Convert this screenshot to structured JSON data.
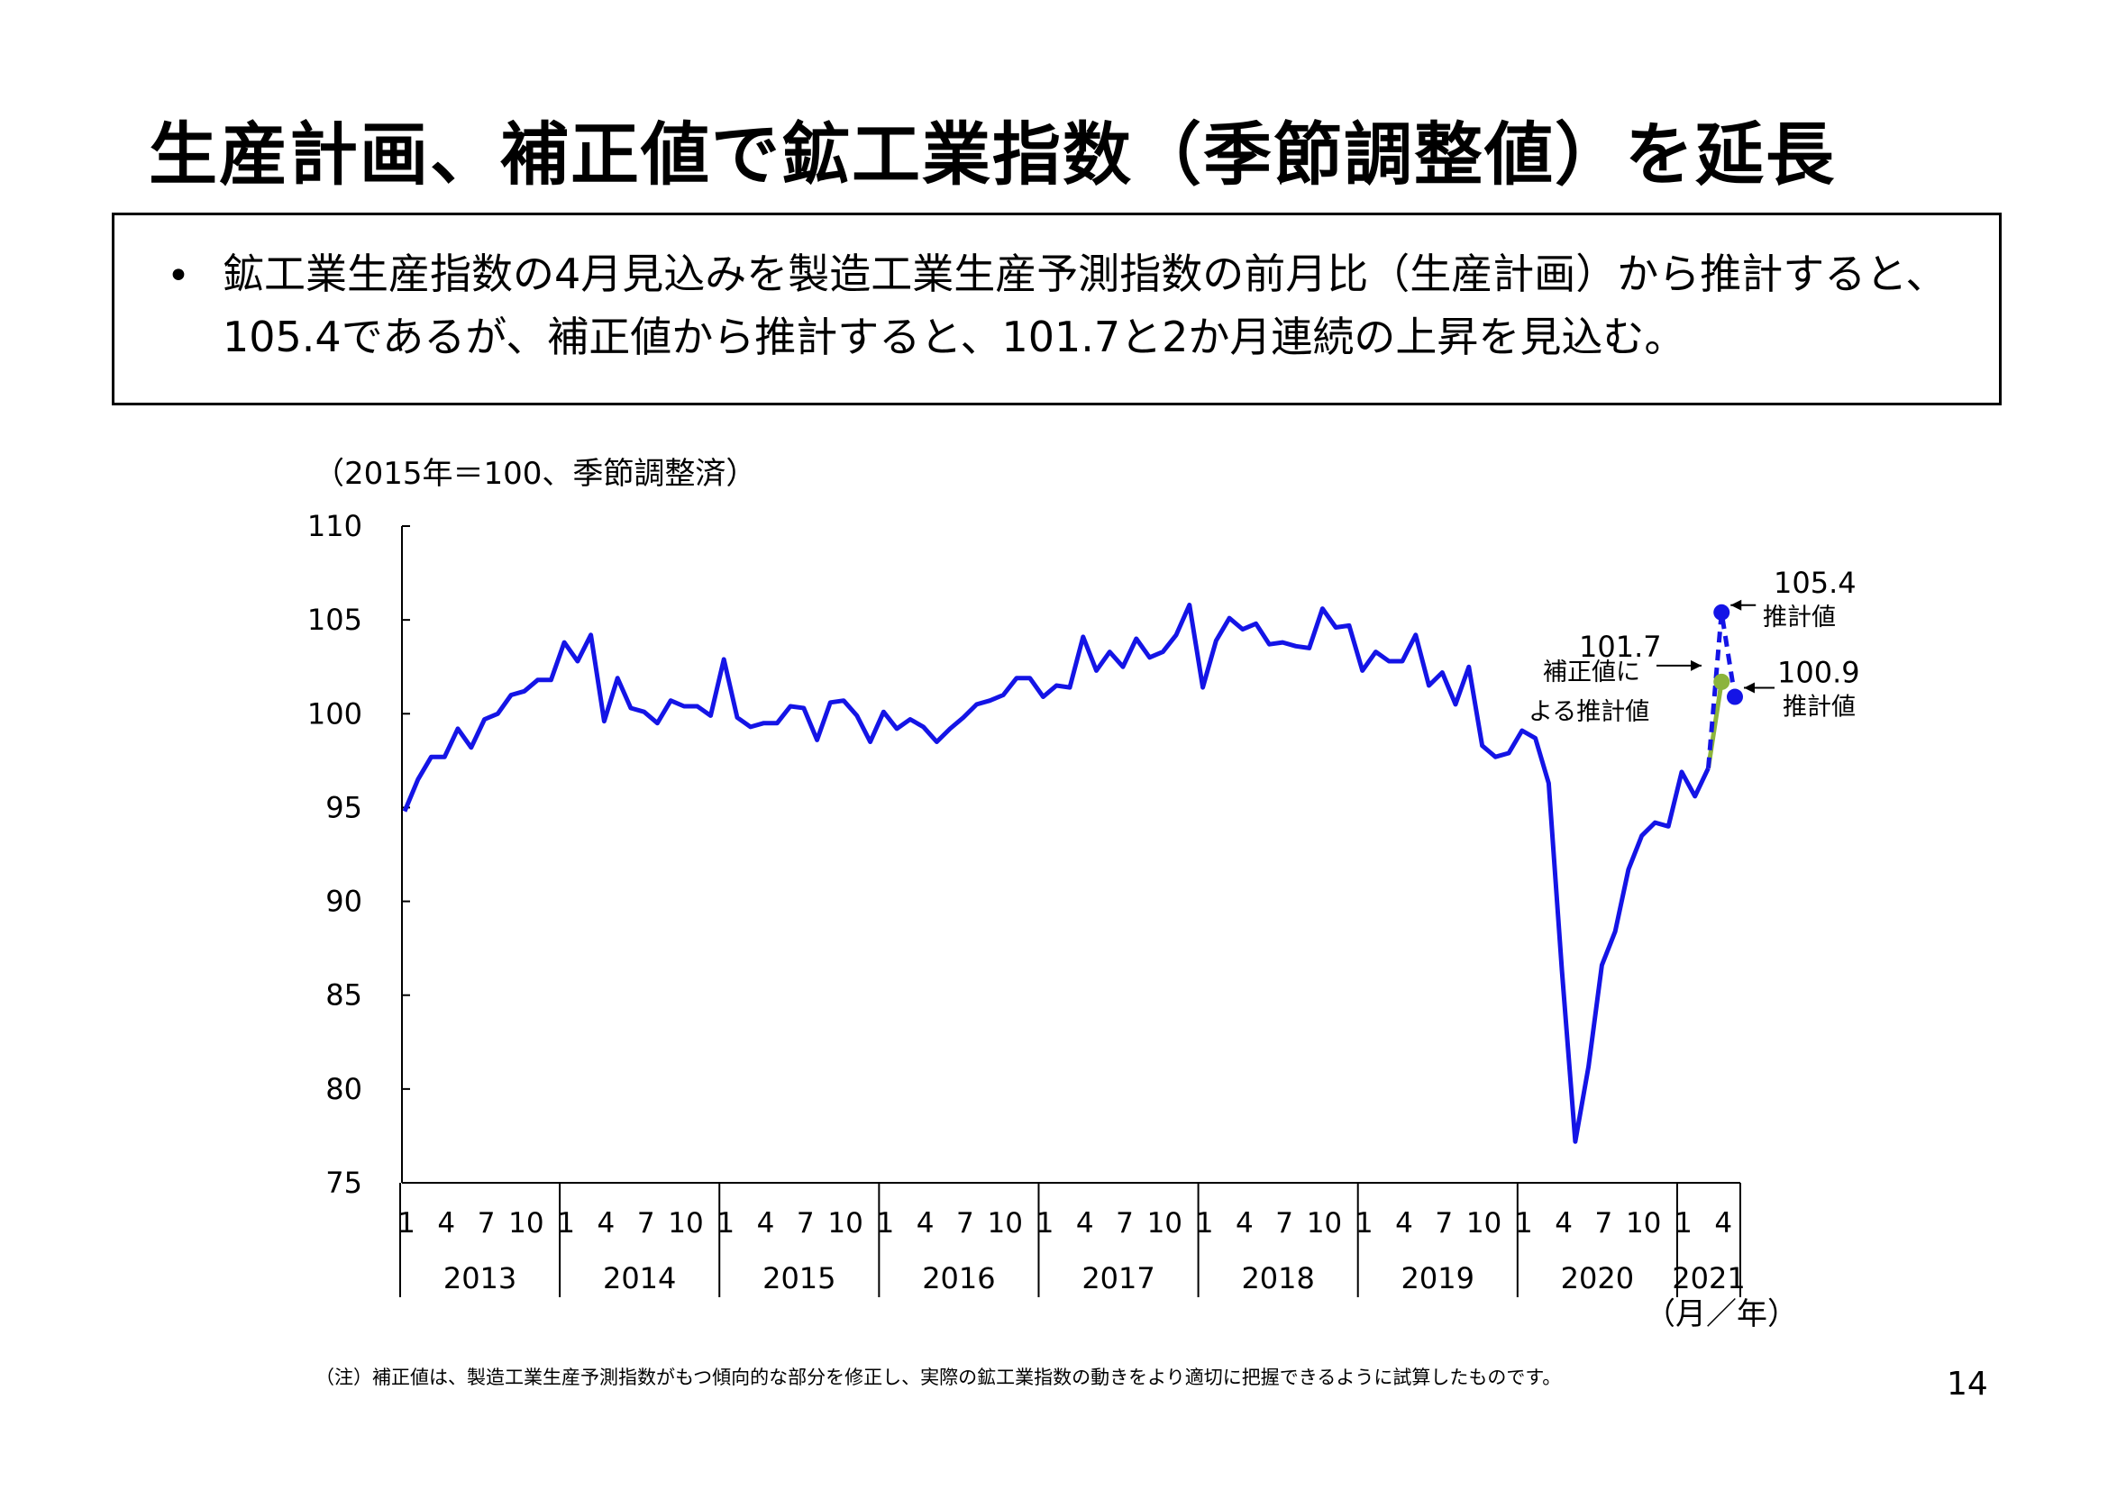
{
  "header": {
    "title": "生産計画、補正値で鉱工業指数（季節調整値）を延長"
  },
  "summary": {
    "bullet": "•",
    "text": "鉱工業生産指数の4月見込みを製造工業生産予測指数の前月比（生産計画）から推計すると、105.4であるが、補正値から推計すると、101.7と2か月連続の上昇を見込む。"
  },
  "chart_data": {
    "type": "line",
    "unit_label": "（2015年＝100、季節調整済）",
    "xlabel": "（月／年）",
    "ylim": [
      75,
      110
    ],
    "y_ticks": [
      "75",
      "80",
      "85",
      "90",
      "95",
      "100",
      "105",
      "110"
    ],
    "month_ticks": [
      "1",
      "4",
      "7",
      "10"
    ],
    "years": [
      "2013",
      "2014",
      "2015",
      "2016",
      "2017",
      "2018",
      "2019",
      "2020",
      "2021"
    ],
    "last_year_month_ticks": [
      "1",
      "4"
    ],
    "grid": false,
    "legend": "none",
    "series": [
      {
        "name": "",
        "color": "#1414e6",
        "start": "2013-01",
        "values": [
          94.8,
          96.5,
          97.7,
          97.7,
          99.2,
          98.2,
          99.7,
          100.0,
          101.0,
          101.2,
          101.8,
          101.8,
          103.8,
          102.8,
          104.2,
          99.6,
          101.9,
          100.3,
          100.1,
          99.5,
          100.7,
          100.4,
          100.4,
          99.9,
          102.9,
          99.8,
          99.3,
          99.5,
          99.5,
          100.4,
          100.3,
          98.6,
          100.6,
          100.7,
          99.9,
          98.5,
          100.1,
          99.2,
          99.7,
          99.3,
          98.5,
          99.2,
          99.8,
          100.5,
          100.7,
          101.0,
          101.9,
          101.9,
          100.9,
          101.5,
          101.4,
          104.1,
          102.3,
          103.3,
          102.5,
          104.0,
          103.0,
          103.3,
          104.2,
          105.8,
          101.4,
          103.9,
          105.1,
          104.5,
          104.8,
          103.7,
          103.8,
          103.6,
          103.5,
          105.6,
          104.6,
          104.7,
          102.3,
          103.3,
          102.8,
          102.8,
          104.2,
          101.5,
          102.2,
          100.5,
          102.5,
          98.3,
          97.7,
          97.9,
          99.1,
          98.7,
          96.3,
          86.3,
          77.2,
          81.2,
          86.6,
          88.4,
          91.7,
          93.5,
          94.2,
          94.0,
          96.9,
          95.6,
          97.1
        ]
      },
      {
        "name": "",
        "color": "#1414e6",
        "style": "dashed",
        "points": [
          {
            "x": "2021-03",
            "y": 97.1
          },
          {
            "x": "2021-04",
            "y": 105.4
          },
          {
            "x": "2021-05",
            "y": 100.9
          }
        ]
      },
      {
        "name": "",
        "color": "#8cb43c",
        "points": [
          {
            "x": "2021-03",
            "y": 97.1
          },
          {
            "x": "2021-04",
            "y": 101.7
          }
        ]
      }
    ],
    "annotations": [
      {
        "value_label": "105.4",
        "text": "推計値"
      },
      {
        "value_label": "100.9",
        "text": "推計値"
      },
      {
        "value_label": "101.7",
        "text_lines": [
          "補正値に",
          "よる推計値"
        ]
      }
    ]
  },
  "footnote": "（注）補正値は、製造工業生産予測指数がもつ傾向的な部分を修正し、実際の鉱工業指数の動きをより適切に把握できるように試算したものです。",
  "page_number": "14"
}
